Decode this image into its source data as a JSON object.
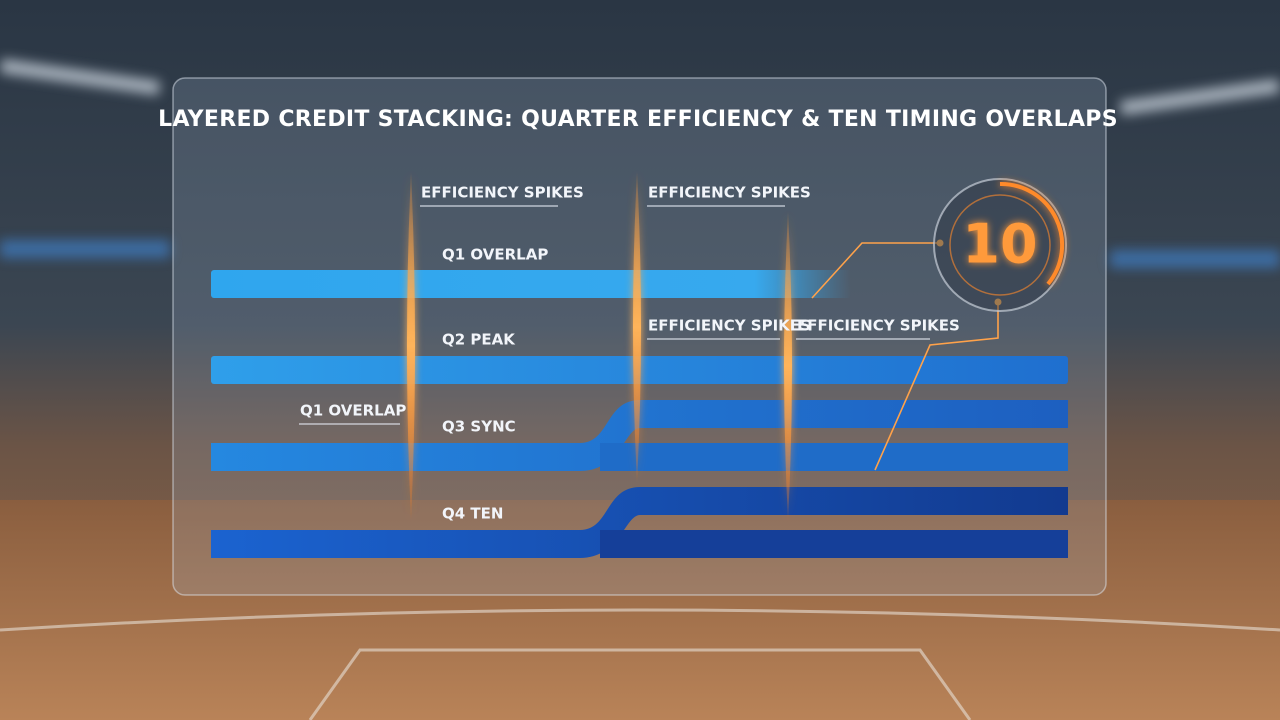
{
  "header": {
    "title": "LAYERED CREDIT STACKING: QUARTER EFFICIENCY & TEN TIMING OVERLAPS"
  },
  "spike_labels": [
    "EFFICIENCY SPIKES",
    "EFFICIENCY SPIKES",
    "EFFICIENCY SPIKES",
    "EFFICIENCY SPIKES"
  ],
  "lanes": [
    "Q1 OVERLAP",
    "Q2 PEAK",
    "Q3 SYNC",
    "Q4 TEN"
  ],
  "side_label": "Q1 OVERLAP",
  "badge": "10"
}
